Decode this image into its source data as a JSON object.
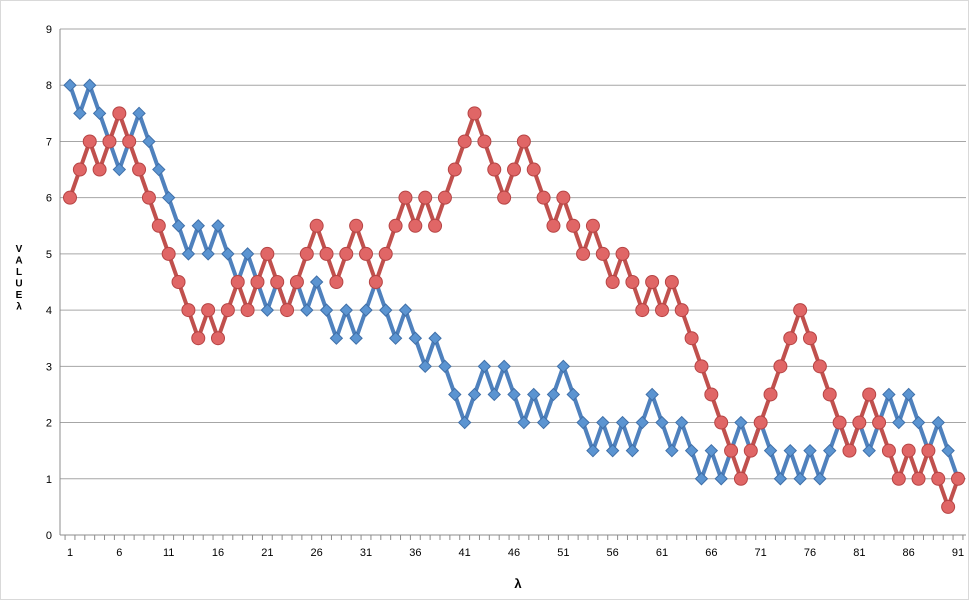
{
  "chart_data": {
    "type": "line",
    "title": "",
    "xlabel": "λ",
    "ylabel": "VALUE λ",
    "x": [
      1,
      2,
      3,
      4,
      5,
      6,
      7,
      8,
      9,
      10,
      11,
      12,
      13,
      14,
      15,
      16,
      17,
      18,
      19,
      20,
      21,
      22,
      23,
      24,
      25,
      26,
      27,
      28,
      29,
      30,
      31,
      32,
      33,
      34,
      35,
      36,
      37,
      38,
      39,
      40,
      41,
      42,
      43,
      44,
      45,
      46,
      47,
      48,
      49,
      50,
      51,
      52,
      53,
      54,
      55,
      56,
      57,
      58,
      59,
      60,
      61,
      62,
      63,
      64,
      65,
      66,
      67,
      68,
      69,
      70,
      71,
      72,
      73,
      74,
      75,
      76,
      77,
      78,
      79,
      80,
      81,
      82,
      83,
      84,
      85,
      86,
      87,
      88,
      89,
      90,
      91
    ],
    "xticks": [
      1,
      6,
      11,
      16,
      21,
      26,
      31,
      36,
      41,
      46,
      51,
      56,
      61,
      66,
      71,
      76,
      81,
      86,
      91
    ],
    "ylim": [
      0,
      9
    ],
    "yticks": [
      0,
      1,
      2,
      3,
      4,
      5,
      6,
      7,
      8,
      9
    ],
    "grid": "horizontal",
    "legend": "none",
    "series": [
      {
        "color": "#4f81bd",
        "marker": "diamond",
        "values": [
          8,
          7.5,
          8,
          7.5,
          7,
          6.5,
          7,
          7.5,
          7,
          6.5,
          6,
          5.5,
          5,
          5.5,
          5,
          5.5,
          5,
          4.5,
          5,
          4.5,
          4,
          4.5,
          4,
          4.5,
          4,
          4.5,
          4,
          3.5,
          4,
          3.5,
          4,
          4.5,
          4,
          3.5,
          4,
          3.5,
          3,
          3.5,
          3,
          2.5,
          2,
          2.5,
          3,
          2.5,
          3,
          2.5,
          2,
          2.5,
          2,
          2.5,
          3,
          2.5,
          2,
          1.5,
          2,
          1.5,
          2,
          1.5,
          2,
          2.5,
          2,
          1.5,
          2,
          1.5,
          1,
          1.5,
          1,
          1.5,
          2,
          1.5,
          2,
          1.5,
          1,
          1.5,
          1,
          1.5,
          1,
          1.5,
          2,
          1.5,
          2,
          1.5,
          2,
          2.5,
          2,
          2.5,
          2,
          1.5,
          2,
          1.5,
          1
        ]
      },
      {
        "color": "#c0504d",
        "marker": "circle",
        "values": [
          6,
          6.5,
          7,
          6.5,
          7,
          7.5,
          7,
          6.5,
          6,
          5.5,
          5,
          4.5,
          4,
          3.5,
          4,
          3.5,
          4,
          4.5,
          4,
          4.5,
          5,
          4.5,
          4,
          4.5,
          5,
          5.5,
          5,
          4.5,
          5,
          5.5,
          5,
          4.5,
          5,
          5.5,
          6,
          5.5,
          6,
          5.5,
          6,
          6.5,
          7,
          7.5,
          7,
          6.5,
          6,
          6.5,
          7,
          6.5,
          6,
          5.5,
          6,
          5.5,
          5,
          5.5,
          5,
          4.5,
          5,
          4.5,
          4,
          4.5,
          4,
          4.5,
          4,
          3.5,
          3,
          2.5,
          2,
          1.5,
          1,
          1.5,
          2,
          2.5,
          3,
          3.5,
          4,
          3.5,
          3,
          2.5,
          2,
          1.5,
          2,
          2.5,
          2,
          1.5,
          1,
          1.5,
          1,
          1.5,
          1,
          0.5,
          1
        ]
      }
    ]
  }
}
